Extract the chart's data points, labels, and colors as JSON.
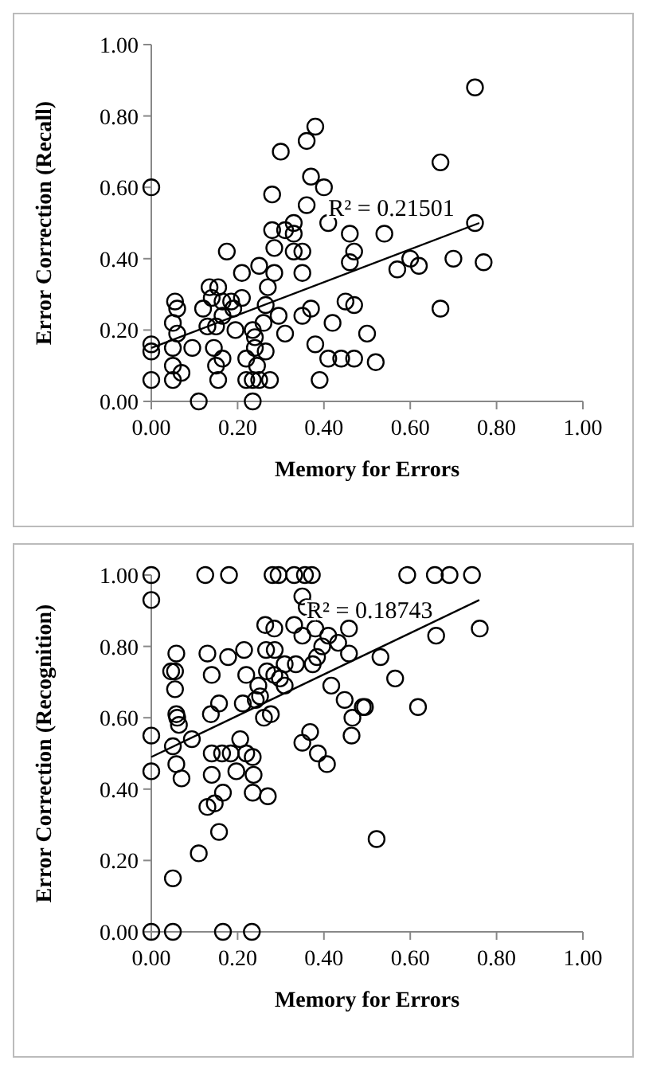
{
  "chart_data": [
    {
      "type": "scatter",
      "xlabel": "Memory for Errors",
      "ylabel": "Error Correction (Recall)",
      "xlim": [
        0,
        1
      ],
      "ylim": [
        0,
        1
      ],
      "xticks": [
        {
          "value": 0,
          "label": "0.00"
        },
        {
          "value": 0.2,
          "label": "0.20"
        },
        {
          "value": 0.4,
          "label": "0.40"
        },
        {
          "value": 0.6,
          "label": "0.60"
        },
        {
          "value": 0.8,
          "label": "0.80"
        },
        {
          "value": 1,
          "label": "1.00"
        }
      ],
      "yticks": [
        {
          "value": 0,
          "label": "0.00"
        },
        {
          "value": 0.2,
          "label": "0.20"
        },
        {
          "value": 0.4,
          "label": "0.40"
        },
        {
          "value": 0.6,
          "label": "0.60"
        },
        {
          "value": 0.8,
          "label": "0.80"
        },
        {
          "value": 1,
          "label": "1.00"
        }
      ],
      "annotations": [
        {
          "text": "R² = 0.21501",
          "x": 0.41,
          "y": 0.52
        }
      ],
      "series": [
        {
          "marker": "circle",
          "color": "#000000",
          "x": [
            0,
            0,
            0,
            0,
            0.05,
            0.05,
            0.05,
            0.055,
            0.06,
            0.05,
            0.06,
            0.07,
            0.095,
            0.11,
            0.12,
            0.135,
            0.14,
            0.13,
            0.145,
            0.15,
            0.15,
            0.155,
            0.165,
            0.165,
            0.155,
            0.165,
            0.175,
            0.185,
            0.19,
            0.195,
            0.21,
            0.21,
            0.22,
            0.22,
            0.235,
            0.235,
            0.235,
            0.24,
            0.24,
            0.25,
            0.245,
            0.25,
            0.26,
            0.265,
            0.265,
            0.27,
            0.275,
            0.28,
            0.285,
            0.285,
            0.28,
            0.3,
            0.295,
            0.31,
            0.31,
            0.33,
            0.33,
            0.33,
            0.35,
            0.35,
            0.35,
            0.36,
            0.36,
            0.38,
            0.37,
            0.37,
            0.38,
            0.39,
            0.4,
            0.41,
            0.41,
            0.42,
            0.44,
            0.46,
            0.47,
            0.46,
            0.45,
            0.47,
            0.47,
            0.75,
            0.67,
            0.54,
            0.57,
            0.6,
            0.62,
            0.7,
            0.75,
            0.77,
            0.67,
            0.5,
            0.52
          ],
          "values": [
            0.6,
            0.16,
            0.14,
            0.06,
            0.15,
            0.1,
            0.06,
            0.28,
            0.26,
            0.22,
            0.19,
            0.08,
            0.15,
            0,
            0.26,
            0.32,
            0.29,
            0.21,
            0.15,
            0.21,
            0.1,
            0.32,
            0.28,
            0.24,
            0.06,
            0.12,
            0.42,
            0.28,
            0.26,
            0.2,
            0.29,
            0.36,
            0.12,
            0.06,
            0.06,
            0,
            0.2,
            0.15,
            0.18,
            0.38,
            0.1,
            0.06,
            0.22,
            0.27,
            0.14,
            0.32,
            0.06,
            0.48,
            0.36,
            0.43,
            0.58,
            0.7,
            0.24,
            0.19,
            0.48,
            0.5,
            0.47,
            0.42,
            0.42,
            0.36,
            0.24,
            0.55,
            0.73,
            0.77,
            0.63,
            0.26,
            0.16,
            0.06,
            0.6,
            0.5,
            0.12,
            0.22,
            0.12,
            0.47,
            0.42,
            0.39,
            0.28,
            0.27,
            0.12,
            0.88,
            0.67,
            0.47,
            0.37,
            0.4,
            0.38,
            0.4,
            0.5,
            0.39,
            0.26,
            0.19,
            0.11
          ]
        },
        {
          "type": "line",
          "color": "#000000",
          "x": [
            0,
            0.76
          ],
          "values": [
            0.15,
            0.5
          ]
        }
      ]
    },
    {
      "type": "scatter",
      "xlabel": "Memory for Errors",
      "ylabel": "Error Correction (Recognition)",
      "xlim": [
        0,
        1
      ],
      "ylim": [
        0,
        1
      ],
      "xticks": [
        {
          "value": 0,
          "label": "0.00"
        },
        {
          "value": 0.2,
          "label": "0.20"
        },
        {
          "value": 0.4,
          "label": "0.40"
        },
        {
          "value": 0.6,
          "label": "0.60"
        },
        {
          "value": 0.8,
          "label": "0.80"
        },
        {
          "value": 1,
          "label": "1.00"
        }
      ],
      "yticks": [
        {
          "value": 0,
          "label": "0.00"
        },
        {
          "value": 0.2,
          "label": "0.20"
        },
        {
          "value": 0.4,
          "label": "0.40"
        },
        {
          "value": 0.6,
          "label": "0.60"
        },
        {
          "value": 0.8,
          "label": "0.80"
        },
        {
          "value": 1,
          "label": "1.00"
        }
      ],
      "annotations": [
        {
          "text": "R² = 0.18743",
          "x": 0.36,
          "y": 0.88
        }
      ],
      "series": [
        {
          "marker": "circle",
          "color": "#000000",
          "x": [
            0,
            0,
            0,
            0,
            0,
            0.05,
            0.05,
            0.05,
            0.046,
            0.058,
            0.055,
            0.055,
            0.058,
            0.06,
            0.064,
            0.058,
            0.07,
            0.094,
            0.11,
            0.125,
            0.13,
            0.14,
            0.138,
            0.14,
            0.13,
            0.147,
            0.157,
            0.157,
            0.166,
            0.14,
            0.164,
            0.184,
            0.178,
            0.18,
            0.166,
            0.197,
            0.206,
            0.212,
            0.215,
            0.22,
            0.22,
            0.235,
            0.237,
            0.235,
            0.233,
            0.242,
            0.248,
            0.252,
            0.261,
            0.264,
            0.266,
            0.268,
            0.27,
            0.277,
            0.281,
            0.285,
            0.286,
            0.295,
            0.285,
            0.298,
            0.309,
            0.309,
            0.331,
            0.331,
            0.335,
            0.35,
            0.36,
            0.356,
            0.372,
            0.35,
            0.35,
            0.368,
            0.38,
            0.374,
            0.384,
            0.386,
            0.396,
            0.407,
            0.41,
            0.417,
            0.433,
            0.448,
            0.458,
            0.458,
            0.466,
            0.464,
            0.49,
            0.593,
            0.657,
            0.691,
            0.743,
            0.66,
            0.761,
            0.531,
            0.565,
            0.495,
            0.618,
            0.522
          ],
          "values": [
            1,
            0.93,
            0.55,
            0.45,
            0,
            0.15,
            0,
            0.52,
            0.73,
            0.78,
            0.73,
            0.68,
            0.61,
            0.6,
            0.58,
            0.47,
            0.43,
            0.54,
            0.22,
            1,
            0.78,
            0.72,
            0.61,
            0.44,
            0.35,
            0.36,
            0.64,
            0.28,
            0.39,
            0.5,
            0.5,
            0.5,
            0.77,
            1,
            0,
            0.45,
            0.54,
            0.64,
            0.79,
            0.5,
            0.72,
            0.49,
            0.44,
            0.39,
            0,
            0.65,
            0.69,
            0.66,
            0.6,
            0.86,
            0.79,
            0.73,
            0.38,
            0.61,
            1,
            0.85,
            0.79,
            1,
            0.72,
            0.71,
            0.75,
            0.69,
            1,
            0.86,
            0.75,
            0.94,
            0.91,
            1,
            1,
            0.83,
            0.53,
            0.56,
            0.85,
            0.75,
            0.77,
            0.5,
            0.8,
            0.47,
            0.83,
            0.69,
            0.81,
            0.65,
            0.85,
            0.78,
            0.6,
            0.55,
            0.63,
            1,
            1,
            1,
            1,
            0.83,
            0.85,
            0.77,
            0.71,
            0.63,
            0.63,
            0.26
          ]
        },
        {
          "type": "line",
          "color": "#000000",
          "x": [
            0,
            0.76
          ],
          "values": [
            0.49,
            0.93
          ]
        }
      ]
    }
  ]
}
